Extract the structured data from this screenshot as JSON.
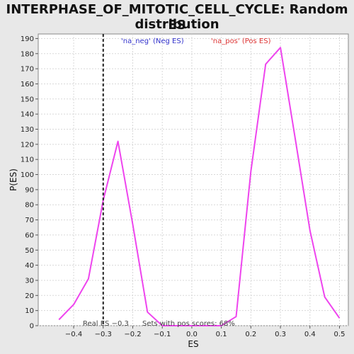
{
  "title_line1": "INTERPHASE_OF_MITOTIC_CELL_CYCLE: Random ES",
  "title_line2": "distribution",
  "chart_data": {
    "type": "line",
    "xlabel": "ES",
    "ylabel": "P(ES)",
    "xlim": [
      -0.52,
      0.53
    ],
    "ylim": [
      0,
      193
    ],
    "xticks": [
      -0.4,
      -0.3,
      -0.2,
      -0.1,
      0.0,
      0.1,
      0.2,
      0.3,
      0.4,
      0.5
    ],
    "xtick_labels": [
      "−0.4",
      "−0.3",
      "−0.2",
      "−0.1",
      "0.0",
      "0.1",
      "0.2",
      "0.3",
      "0.4",
      "0.5"
    ],
    "yticks": [
      0,
      10,
      20,
      30,
      40,
      50,
      60,
      70,
      80,
      90,
      100,
      110,
      120,
      130,
      140,
      150,
      160,
      170,
      180,
      190
    ],
    "grid": true,
    "series": [
      {
        "color": "#ee44ee",
        "x": [
          -0.45,
          -0.4,
          -0.35,
          -0.3,
          -0.25,
          -0.2,
          -0.15,
          -0.1,
          -0.05,
          0.0,
          0.05,
          0.1,
          0.15,
          0.2,
          0.25,
          0.3,
          0.35,
          0.4,
          0.45,
          0.5
        ],
        "y": [
          4,
          14,
          31,
          83,
          122,
          67,
          9,
          0,
          0,
          0,
          0,
          0,
          6,
          102,
          173,
          184,
          124,
          63,
          19,
          5
        ]
      }
    ],
    "real_es": -0.3,
    "legend": [
      {
        "text": "'na_neg' (Neg ES)",
        "color": "#3333cc"
      },
      {
        "text": "'na_pos' (Pos ES)",
        "color": "#dd3333"
      }
    ],
    "annotations": {
      "real_es_label": "Real ES −0.3",
      "pos_scores_label": "Sets with pos scores: 68%"
    }
  }
}
